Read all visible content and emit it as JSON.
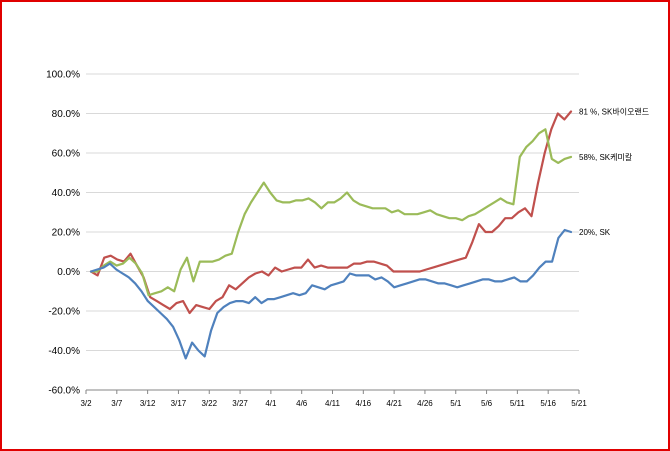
{
  "chart_data": {
    "type": "line",
    "title": "",
    "xlabel": "",
    "ylabel": "",
    "ylim": [
      -60,
      100
    ],
    "y_ticks": [
      "100.0%",
      "80.0%",
      "60.0%",
      "40.0%",
      "20.0%",
      "0.0%",
      "-20.0%",
      "-40.0%",
      "-60.0%"
    ],
    "x_ticks": [
      "3/2",
      "3/7",
      "3/12",
      "3/17",
      "3/22",
      "3/27",
      "4/1",
      "4/6",
      "4/11",
      "4/16",
      "4/21",
      "4/26",
      "5/1",
      "5/6",
      "5/11",
      "5/16",
      "5/21"
    ],
    "grid": "horizontal",
    "legend": "none",
    "series": [
      {
        "label": "81 %, SK바이오랜드",
        "color": "#c0504d",
        "values": [
          0,
          -2,
          7,
          8,
          6,
          5,
          9,
          3,
          -3,
          -13,
          -15,
          -17,
          -19,
          -16,
          -15,
          -21,
          -17,
          -18,
          -19,
          -15,
          -13,
          -7,
          -9,
          -6,
          -3,
          -1,
          0,
          -2,
          2,
          0,
          1,
          2,
          2,
          6,
          2,
          3,
          2,
          2,
          2,
          2,
          4,
          4,
          5,
          5,
          4,
          3,
          0,
          0,
          0,
          0,
          0,
          1,
          2,
          3,
          4,
          5,
          6,
          7,
          15,
          24,
          20,
          20,
          23,
          27,
          27,
          30,
          32,
          28,
          45,
          60,
          72,
          80,
          77,
          81
        ]
      },
      {
        "label": "58%, SK케미칼",
        "color": "#9bbb59",
        "values": [
          0,
          0,
          3,
          5,
          3,
          4,
          7,
          4,
          -1,
          -12,
          -11,
          -10,
          -8,
          -10,
          1,
          7,
          -5,
          5,
          5,
          5,
          6,
          8,
          9,
          20,
          29,
          35,
          40,
          45,
          40,
          36,
          35,
          35,
          36,
          36,
          37,
          35,
          32,
          35,
          35,
          37,
          40,
          36,
          34,
          33,
          32,
          32,
          32,
          30,
          31,
          29,
          29,
          29,
          30,
          31,
          29,
          28,
          27,
          27,
          26,
          28,
          29,
          31,
          33,
          35,
          37,
          35,
          34,
          58,
          63,
          66,
          70,
          72,
          57,
          55,
          57,
          58
        ]
      },
      {
        "label": "20%, SK",
        "color": "#4f81bd",
        "values": [
          0,
          1,
          2,
          4,
          1,
          -1,
          -3,
          -6,
          -10,
          -15,
          -18,
          -21,
          -24,
          -28,
          -35,
          -44,
          -36,
          -40,
          -43,
          -30,
          -21,
          -18,
          -16,
          -15,
          -15,
          -16,
          -13,
          -16,
          -14,
          -14,
          -13,
          -12,
          -11,
          -12,
          -11,
          -7,
          -8,
          -9,
          -7,
          -6,
          -5,
          -1,
          -2,
          -2,
          -2,
          -4,
          -3,
          -5,
          -8,
          -7,
          -6,
          -5,
          -4,
          -4,
          -5,
          -6,
          -6,
          -7,
          -8,
          -7,
          -6,
          -5,
          -4,
          -4,
          -5,
          -5,
          -4,
          -3,
          -5,
          -5,
          -2,
          2,
          5,
          5,
          17,
          21,
          20
        ]
      }
    ],
    "end_labels": [
      "81 %, SK바이오랜드",
      "58%, SK케미칼",
      "20%, SK"
    ]
  }
}
